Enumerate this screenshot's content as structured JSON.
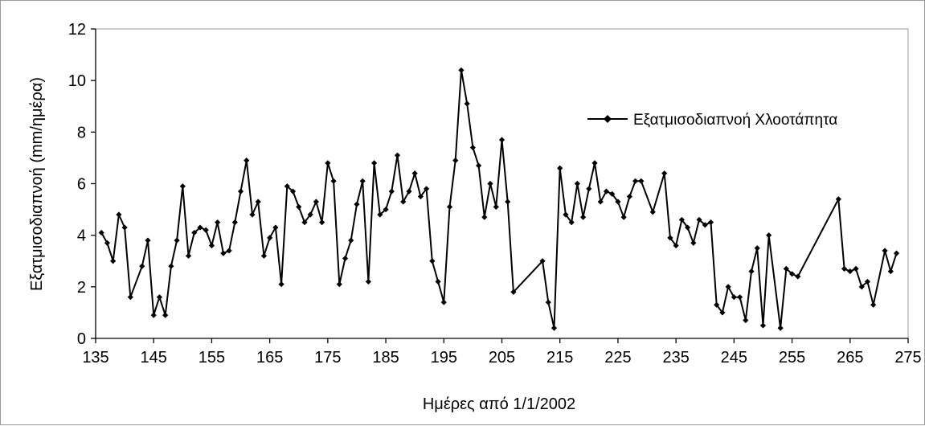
{
  "chart_data": {
    "type": "line",
    "title": "",
    "xlabel": "Ημέρες από 1/1/2002",
    "ylabel": "Εξατμισοδιαπνοή (mm/ημέρα)",
    "xlim": [
      135,
      275
    ],
    "ylim": [
      0,
      12
    ],
    "xticks": [
      135,
      145,
      155,
      165,
      175,
      185,
      195,
      205,
      215,
      225,
      235,
      245,
      255,
      265,
      275
    ],
    "yticks": [
      0,
      2,
      4,
      6,
      8,
      10,
      12
    ],
    "grid": false,
    "legend_position": "top-right",
    "colors": {
      "series": "#000000",
      "frame": "#9a9a9a"
    },
    "series": [
      {
        "name": "Εξατμισοδιαπνοή Χλοοτάπητα",
        "marker": "diamond",
        "points": [
          [
            136,
            4.1
          ],
          [
            137,
            3.7
          ],
          [
            138,
            3.0
          ],
          [
            139,
            4.8
          ],
          [
            140,
            4.3
          ],
          [
            141,
            1.6
          ],
          [
            143,
            2.8
          ],
          [
            144,
            3.8
          ],
          [
            145,
            0.9
          ],
          [
            146,
            1.6
          ],
          [
            147,
            0.9
          ],
          [
            148,
            2.8
          ],
          [
            149,
            3.8
          ],
          [
            150,
            5.9
          ],
          [
            151,
            3.2
          ],
          [
            152,
            4.1
          ],
          [
            153,
            4.3
          ],
          [
            154,
            4.2
          ],
          [
            155,
            3.6
          ],
          [
            156,
            4.5
          ],
          [
            157,
            3.3
          ],
          [
            158,
            3.4
          ],
          [
            159,
            4.5
          ],
          [
            160,
            5.7
          ],
          [
            161,
            6.9
          ],
          [
            162,
            4.8
          ],
          [
            163,
            5.3
          ],
          [
            164,
            3.2
          ],
          [
            165,
            3.9
          ],
          [
            166,
            4.3
          ],
          [
            167,
            2.1
          ],
          [
            168,
            5.9
          ],
          [
            169,
            5.7
          ],
          [
            170,
            5.1
          ],
          [
            171,
            4.5
          ],
          [
            172,
            4.8
          ],
          [
            173,
            5.3
          ],
          [
            174,
            4.5
          ],
          [
            175,
            6.8
          ],
          [
            176,
            6.1
          ],
          [
            177,
            2.1
          ],
          [
            178,
            3.1
          ],
          [
            179,
            3.8
          ],
          [
            180,
            5.2
          ],
          [
            181,
            6.1
          ],
          [
            182,
            2.2
          ],
          [
            183,
            6.8
          ],
          [
            184,
            4.8
          ],
          [
            185,
            5.0
          ],
          [
            186,
            5.7
          ],
          [
            187,
            7.1
          ],
          [
            188,
            5.3
          ],
          [
            189,
            5.7
          ],
          [
            190,
            6.4
          ],
          [
            191,
            5.5
          ],
          [
            192,
            5.8
          ],
          [
            193,
            3.0
          ],
          [
            194,
            2.2
          ],
          [
            195,
            1.4
          ],
          [
            196,
            5.1
          ],
          [
            197,
            6.9
          ],
          [
            198,
            10.4
          ],
          [
            199,
            9.1
          ],
          [
            200,
            7.4
          ],
          [
            201,
            6.7
          ],
          [
            202,
            4.7
          ],
          [
            203,
            6.0
          ],
          [
            204,
            5.1
          ],
          [
            205,
            7.7
          ],
          [
            206,
            5.3
          ],
          [
            207,
            1.8
          ],
          [
            212,
            3.0
          ],
          [
            213,
            1.4
          ],
          [
            214,
            0.4
          ],
          [
            215,
            6.6
          ],
          [
            216,
            4.8
          ],
          [
            217,
            4.5
          ],
          [
            218,
            6.0
          ],
          [
            219,
            4.7
          ],
          [
            220,
            5.8
          ],
          [
            221,
            6.8
          ],
          [
            222,
            5.3
          ],
          [
            223,
            5.7
          ],
          [
            224,
            5.6
          ],
          [
            225,
            5.3
          ],
          [
            226,
            4.7
          ],
          [
            227,
            5.5
          ],
          [
            228,
            6.1
          ],
          [
            229,
            6.1
          ],
          [
            231,
            4.9
          ],
          [
            233,
            6.4
          ],
          [
            234,
            3.9
          ],
          [
            235,
            3.6
          ],
          [
            236,
            4.6
          ],
          [
            237,
            4.3
          ],
          [
            238,
            3.7
          ],
          [
            239,
            4.6
          ],
          [
            240,
            4.4
          ],
          [
            241,
            4.5
          ],
          [
            242,
            1.3
          ],
          [
            243,
            1.0
          ],
          [
            244,
            2.0
          ],
          [
            245,
            1.6
          ],
          [
            246,
            1.6
          ],
          [
            247,
            0.7
          ],
          [
            248,
            2.6
          ],
          [
            249,
            3.5
          ],
          [
            250,
            0.5
          ],
          [
            251,
            4.0
          ],
          [
            253,
            0.4
          ],
          [
            254,
            2.7
          ],
          [
            255,
            2.5
          ],
          [
            256,
            2.4
          ],
          [
            263,
            5.4
          ],
          [
            264,
            2.7
          ],
          [
            265,
            2.6
          ],
          [
            266,
            2.7
          ],
          [
            267,
            2.0
          ],
          [
            268,
            2.2
          ],
          [
            269,
            1.3
          ],
          [
            271,
            3.4
          ],
          [
            272,
            2.6
          ],
          [
            273,
            3.3
          ]
        ]
      }
    ]
  }
}
